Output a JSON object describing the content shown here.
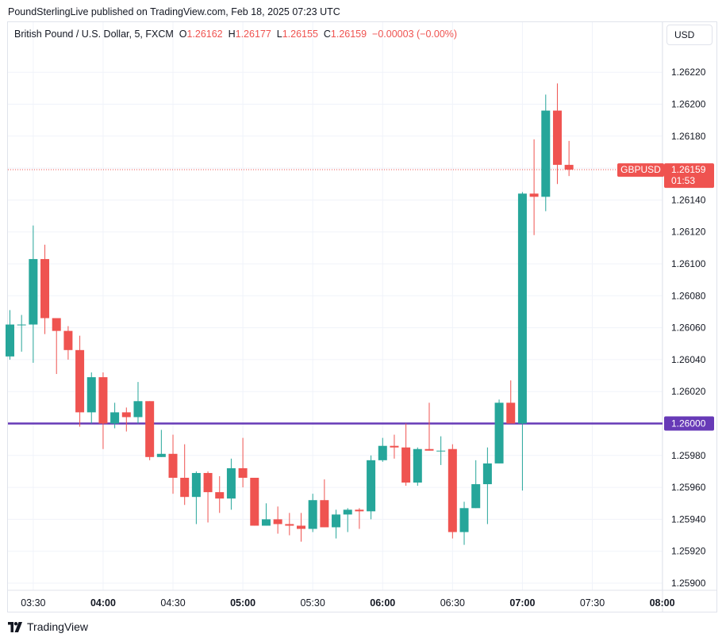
{
  "header": {
    "publisher_line": "PoundSterlingLive published on TradingView.com, Feb 18, 2025 07:23 UTC"
  },
  "legend": {
    "symbol": "British Pound / U.S. Dollar, 5, FXCM",
    "o_label": "O",
    "o": "1.26162",
    "h_label": "H",
    "h": "1.26177",
    "l_label": "L",
    "l": "1.26155",
    "c_label": "C",
    "c": "1.26159",
    "change": "−0.00003 (−0.00%)"
  },
  "currency_button": "USD",
  "price_label": {
    "ticker": "GBPUSD",
    "price": "1.26159",
    "countdown": "01:53"
  },
  "level_line": {
    "price": 1.26,
    "label": "1.26000"
  },
  "brand": {
    "name": "TradingView"
  },
  "colors": {
    "up": "#26a69a",
    "down": "#ef5350",
    "level": "#673ab7",
    "grid": "#f0f3fa",
    "text": "#131722"
  },
  "chart_data": {
    "type": "candlestick",
    "interval": "5",
    "ylim": [
      1.259,
      1.2623
    ],
    "y_ticks": [
      "1.25900",
      "1.25920",
      "1.25940",
      "1.25960",
      "1.25980",
      "1.26000",
      "1.26020",
      "1.26040",
      "1.26060",
      "1.26080",
      "1.26100",
      "1.26120",
      "1.26140",
      "1.26160",
      "1.26180",
      "1.26200",
      "1.26220"
    ],
    "x_ticks": [
      {
        "label": "03:30",
        "bold": false,
        "index": 2
      },
      {
        "label": "04:00",
        "bold": true,
        "index": 8
      },
      {
        "label": "04:30",
        "bold": false,
        "index": 14
      },
      {
        "label": "05:00",
        "bold": true,
        "index": 20
      },
      {
        "label": "05:30",
        "bold": false,
        "index": 26
      },
      {
        "label": "06:00",
        "bold": true,
        "index": 32
      },
      {
        "label": "06:30",
        "bold": false,
        "index": 38
      },
      {
        "label": "07:00",
        "bold": true,
        "index": 44
      },
      {
        "label": "07:30",
        "bold": false,
        "index": 50
      },
      {
        "label": "08:00",
        "bold": true,
        "index": 56
      }
    ],
    "candles": [
      {
        "o": 1.26042,
        "h": 1.26071,
        "l": 1.2604,
        "c": 1.26062
      },
      {
        "o": 1.26062,
        "h": 1.26068,
        "l": 1.26045,
        "c": 1.26062
      },
      {
        "o": 1.26062,
        "h": 1.26124,
        "l": 1.26038,
        "c": 1.26103
      },
      {
        "o": 1.26103,
        "h": 1.26112,
        "l": 1.26056,
        "c": 1.26066
      },
      {
        "o": 1.26066,
        "h": 1.26066,
        "l": 1.26031,
        "c": 1.26058
      },
      {
        "o": 1.26058,
        "h": 1.26061,
        "l": 1.2604,
        "c": 1.26046
      },
      {
        "o": 1.26046,
        "h": 1.26055,
        "l": 1.25998,
        "c": 1.26007
      },
      {
        "o": 1.26007,
        "h": 1.26032,
        "l": 1.26,
        "c": 1.26029
      },
      {
        "o": 1.26029,
        "h": 1.26032,
        "l": 1.25984,
        "c": 1.26
      },
      {
        "o": 1.26,
        "h": 1.26013,
        "l": 1.25997,
        "c": 1.26007
      },
      {
        "o": 1.26007,
        "h": 1.2601,
        "l": 1.25995,
        "c": 1.26004
      },
      {
        "o": 1.26004,
        "h": 1.26026,
        "l": 1.26,
        "c": 1.26014
      },
      {
        "o": 1.26014,
        "h": 1.26014,
        "l": 1.25977,
        "c": 1.25979
      },
      {
        "o": 1.25979,
        "h": 1.25996,
        "l": 1.25979,
        "c": 1.25981
      },
      {
        "o": 1.25981,
        "h": 1.25993,
        "l": 1.25956,
        "c": 1.25966
      },
      {
        "o": 1.25966,
        "h": 1.25987,
        "l": 1.25949,
        "c": 1.25954
      },
      {
        "o": 1.25954,
        "h": 1.2597,
        "l": 1.25937,
        "c": 1.25969
      },
      {
        "o": 1.25969,
        "h": 1.2597,
        "l": 1.25938,
        "c": 1.25957
      },
      {
        "o": 1.25957,
        "h": 1.25967,
        "l": 1.25944,
        "c": 1.25953
      },
      {
        "o": 1.25953,
        "h": 1.25978,
        "l": 1.25946,
        "c": 1.25972
      },
      {
        "o": 1.25972,
        "h": 1.25991,
        "l": 1.2596,
        "c": 1.25966
      },
      {
        "o": 1.25966,
        "h": 1.25966,
        "l": 1.25936,
        "c": 1.25936
      },
      {
        "o": 1.25936,
        "h": 1.2595,
        "l": 1.25936,
        "c": 1.2594
      },
      {
        "o": 1.2594,
        "h": 1.25948,
        "l": 1.25931,
        "c": 1.25937
      },
      {
        "o": 1.25937,
        "h": 1.25944,
        "l": 1.2593,
        "c": 1.25936
      },
      {
        "o": 1.25936,
        "h": 1.25944,
        "l": 1.25926,
        "c": 1.25934
      },
      {
        "o": 1.25934,
        "h": 1.25956,
        "l": 1.25932,
        "c": 1.25952
      },
      {
        "o": 1.25952,
        "h": 1.25965,
        "l": 1.25935,
        "c": 1.25935
      },
      {
        "o": 1.25935,
        "h": 1.25946,
        "l": 1.25928,
        "c": 1.25943
      },
      {
        "o": 1.25943,
        "h": 1.25947,
        "l": 1.25932,
        "c": 1.25946
      },
      {
        "o": 1.25946,
        "h": 1.25947,
        "l": 1.25934,
        "c": 1.25945
      },
      {
        "o": 1.25945,
        "h": 1.2598,
        "l": 1.2594,
        "c": 1.25977
      },
      {
        "o": 1.25977,
        "h": 1.25991,
        "l": 1.25976,
        "c": 1.25986
      },
      {
        "o": 1.25986,
        "h": 1.25993,
        "l": 1.25978,
        "c": 1.25985
      },
      {
        "o": 1.25985,
        "h": 1.26,
        "l": 1.25961,
        "c": 1.25963
      },
      {
        "o": 1.25963,
        "h": 1.25985,
        "l": 1.25961,
        "c": 1.25984
      },
      {
        "o": 1.25984,
        "h": 1.26013,
        "l": 1.25983,
        "c": 1.25983
      },
      {
        "o": 1.25983,
        "h": 1.25992,
        "l": 1.25974,
        "c": 1.25983
      },
      {
        "o": 1.25984,
        "h": 1.25987,
        "l": 1.25928,
        "c": 1.25932
      },
      {
        "o": 1.25932,
        "h": 1.25951,
        "l": 1.25924,
        "c": 1.25947
      },
      {
        "o": 1.25947,
        "h": 1.25977,
        "l": 1.25947,
        "c": 1.25962
      },
      {
        "o": 1.25962,
        "h": 1.25985,
        "l": 1.25937,
        "c": 1.25975
      },
      {
        "o": 1.25975,
        "h": 1.26015,
        "l": 1.25975,
        "c": 1.26013
      },
      {
        "o": 1.26013,
        "h": 1.26027,
        "l": 1.26,
        "c": 1.26
      },
      {
        "o": 1.26,
        "h": 1.26145,
        "l": 1.25958,
        "c": 1.26144
      },
      {
        "o": 1.26144,
        "h": 1.26178,
        "l": 1.26118,
        "c": 1.26142
      },
      {
        "o": 1.26142,
        "h": 1.26206,
        "l": 1.26133,
        "c": 1.26196
      },
      {
        "o": 1.26196,
        "h": 1.26213,
        "l": 1.2615,
        "c": 1.26162
      },
      {
        "o": 1.26162,
        "h": 1.26177,
        "l": 1.26155,
        "c": 1.26159
      }
    ]
  }
}
